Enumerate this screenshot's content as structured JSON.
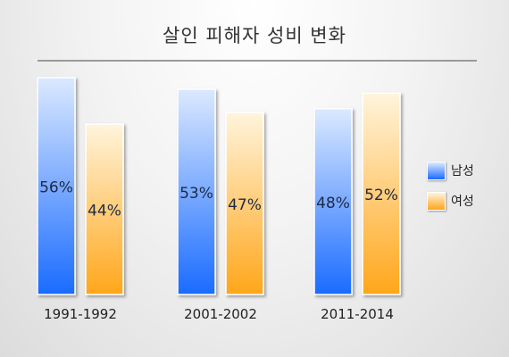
{
  "chart_data": {
    "type": "bar",
    "title": "살인 피해자 성비 변화",
    "categories": [
      "1991-1992",
      "2001-2002",
      "2011-2014"
    ],
    "series": [
      {
        "name": "남성",
        "values": [
          56,
          53,
          48
        ],
        "labels": [
          "56%",
          "53%",
          "48%"
        ],
        "color": "#1a6bff",
        "color_light": "#dbe9ff"
      },
      {
        "name": "여성",
        "values": [
          44,
          47,
          52
        ],
        "labels": [
          "44%",
          "47%",
          "52%"
        ],
        "color": "#ffa61a",
        "color_light": "#fff4dc"
      }
    ],
    "ylim": [
      0,
      56
    ],
    "grid": false,
    "legend_position": "right"
  }
}
